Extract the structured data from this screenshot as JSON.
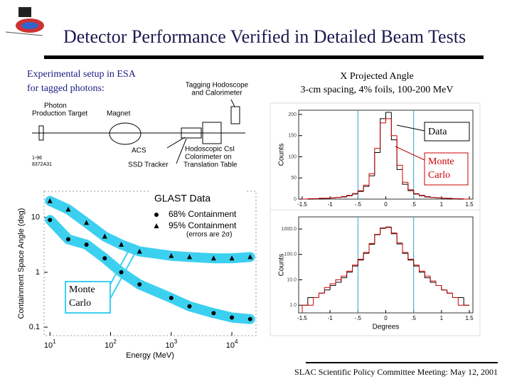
{
  "header": {
    "title": "Detector Performance Verified in Detailed Beam Tests"
  },
  "setup": {
    "caption": [
      "Experimental setup in ESA",
      "for tagged photons:"
    ],
    "labels": {
      "hodoscope": [
        "Tagging Hodoscope",
        "and Calorimeter"
      ],
      "target": [
        "Photon",
        "Production Target"
      ],
      "magnet": "Magnet",
      "acs": "ACS",
      "calorimeter": [
        "Hodoscopic CsI",
        "Colorimeter on",
        "Translation Table"
      ],
      "tracker": "SSD Tracker",
      "code": [
        "1-96",
        "8372A31"
      ]
    }
  },
  "glast_plot": {
    "legend_title": "GLAST Data",
    "note": "(errors are 2σ)",
    "xlabel": "Energy (MeV)",
    "ylabel": "Containment Space Angle (deg)",
    "log_x": true,
    "log_y": true,
    "xlim": [
      8,
      25000
    ],
    "ylim": [
      0.07,
      30
    ],
    "xticks": [
      {
        "value": 10,
        "base": "10",
        "exp": "1"
      },
      {
        "value": 100,
        "base": "10",
        "exp": "2"
      },
      {
        "value": 1000,
        "base": "10",
        "exp": "3"
      },
      {
        "value": 10000,
        "base": "10",
        "exp": "4"
      }
    ],
    "yticks": [
      0.1,
      1,
      10
    ],
    "x": [
      10,
      20,
      40,
      80,
      150,
      300,
      1000,
      2000,
      5000,
      10000,
      20000
    ],
    "band_color": "#3cd0f0",
    "series": [
      {
        "name": "68% Containment",
        "marker": "circle",
        "color": "#000000",
        "values": [
          9,
          4,
          3.2,
          1.8,
          1.0,
          0.6,
          0.34,
          0.24,
          0.18,
          0.15,
          0.14
        ]
      },
      {
        "name": "95% Containment",
        "marker": "triangle",
        "color": "#000000",
        "values": [
          20,
          14,
          8,
          4.5,
          3.2,
          2.4,
          2.0,
          1.9,
          1.8,
          1.8,
          1.9
        ]
      }
    ],
    "callout": [
      "Monte",
      "Carlo"
    ]
  },
  "projection": {
    "title": "X Projected Angle",
    "subtitle": "3-cm spacing, 4% foils, 100-200 MeV",
    "callouts": {
      "data": "Data",
      "mc": [
        "Monte",
        "Carlo"
      ]
    },
    "xlabel": "Degrees",
    "ylabel": "Counts",
    "xlim": [
      -1.5,
      1.5
    ],
    "xticks": [
      {
        "value": -1.5,
        "label": "-1.5"
      },
      {
        "value": -1,
        "label": "-1"
      },
      {
        "value": -0.5,
        "label": "-.5"
      },
      0,
      {
        "value": 0.5,
        "label": ".5"
      },
      1,
      1.5
    ],
    "cuts": [
      -0.5,
      0.5
    ],
    "bins": [
      -1.5,
      -1.4,
      -1.3,
      -1.2,
      -1.1,
      -1.0,
      -0.9,
      -0.8,
      -0.7,
      -0.6,
      -0.5,
      -0.4,
      -0.3,
      -0.2,
      -0.1,
      0,
      0.1,
      0.2,
      0.3,
      0.4,
      0.5,
      0.6,
      0.7,
      0.8,
      0.9,
      1.0,
      1.1,
      1.2,
      1.3,
      1.4,
      1.5
    ],
    "top": {
      "ylim": [
        0,
        210
      ],
      "yticks": [
        0,
        50,
        100,
        150,
        200
      ],
      "series": [
        {
          "name": "Data",
          "color": "#000000",
          "values": [
            0,
            0,
            1,
            1,
            2,
            3,
            4,
            5,
            8,
            12,
            18,
            30,
            55,
            110,
            190,
            205,
            140,
            70,
            35,
            20,
            12,
            8,
            5,
            4,
            3,
            2,
            1,
            1,
            0,
            0
          ]
        },
        {
          "name": "Monte Carlo",
          "color": "#cc0000",
          "values": [
            0,
            1,
            1,
            2,
            2,
            3,
            4,
            6,
            9,
            13,
            20,
            33,
            60,
            120,
            180,
            190,
            150,
            80,
            40,
            22,
            13,
            9,
            6,
            4,
            3,
            2,
            2,
            1,
            1,
            0
          ]
        }
      ]
    },
    "bottom": {
      "log_y": true,
      "ylim": [
        0.5,
        3000
      ],
      "yticks": [
        {
          "value": 1,
          "label": "1.0"
        },
        {
          "value": 10,
          "label": "10.0"
        },
        {
          "value": 100,
          "label": "100.0"
        },
        {
          "value": 1000,
          "label": "1000.0"
        }
      ],
      "series": [
        {
          "name": "Data",
          "color": "#000000",
          "values": [
            1,
            2,
            2,
            3,
            4,
            6,
            8,
            12,
            20,
            35,
            60,
            110,
            250,
            600,
            1100,
            1200,
            650,
            260,
            110,
            60,
            35,
            20,
            12,
            8,
            6,
            4,
            3,
            2,
            2,
            1
          ]
        },
        {
          "name": "Monte Carlo",
          "color": "#cc0000",
          "values": [
            1,
            1,
            2,
            3,
            5,
            7,
            10,
            14,
            22,
            38,
            65,
            120,
            270,
            620,
            1050,
            1150,
            700,
            280,
            120,
            65,
            38,
            22,
            14,
            9,
            6,
            4,
            3,
            2,
            1,
            1
          ]
        }
      ]
    }
  },
  "footer": "SLAC Scientific Policy Committee Meeting:  May 12, 2001"
}
